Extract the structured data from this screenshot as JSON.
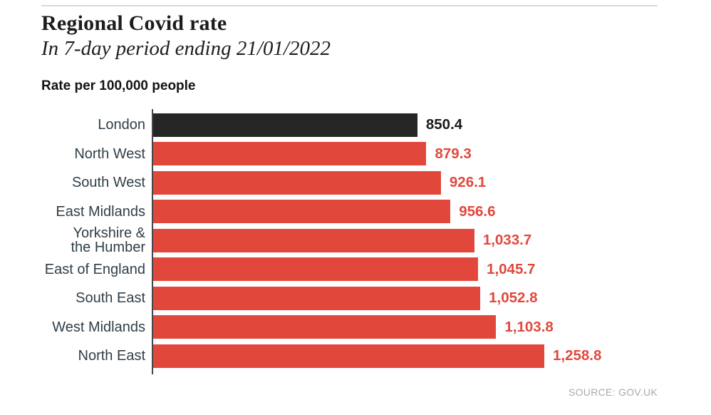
{
  "chart_data": {
    "type": "bar",
    "orientation": "horizontal",
    "title": "Regional Covid rate",
    "subtitle": "In 7-day period ending 21/01/2022",
    "value_axis_title": "Rate per 100,000 people",
    "xlim": [
      0,
      1258.8
    ],
    "grid": false,
    "legend": false,
    "categories": [
      "London",
      "North West",
      "South West",
      "East Midlands",
      "Yorkshire &\nthe Humber",
      "East of England",
      "South East",
      "West Midlands",
      "North East"
    ],
    "values": [
      850.4,
      879.3,
      926.1,
      956.6,
      1033.7,
      1045.7,
      1052.8,
      1103.8,
      1258.8
    ],
    "value_labels": [
      "850.4",
      "879.3",
      "926.1",
      "956.6",
      "1,033.7",
      "1,045.7",
      "1,052.8",
      "1,103.8",
      "1,258.8"
    ],
    "bar_colors": [
      "#262626",
      "#e2473c",
      "#e2473c",
      "#e2473c",
      "#e2473c",
      "#e2473c",
      "#e2473c",
      "#e2473c",
      "#e2473c"
    ],
    "value_label_colors": [
      "#1a1a1a",
      "#e2473c",
      "#e2473c",
      "#e2473c",
      "#e2473c",
      "#e2473c",
      "#e2473c",
      "#e2473c",
      "#e2473c"
    ]
  },
  "footer": {
    "source": "SOURCE: GOV.UK"
  },
  "colors": {
    "bar_red": "#e2473c",
    "bar_black": "#262626",
    "category_label": "#2f3e48",
    "axis_line": "#44474a",
    "top_rule": "#dadada",
    "source_text": "#a6a9ad"
  }
}
